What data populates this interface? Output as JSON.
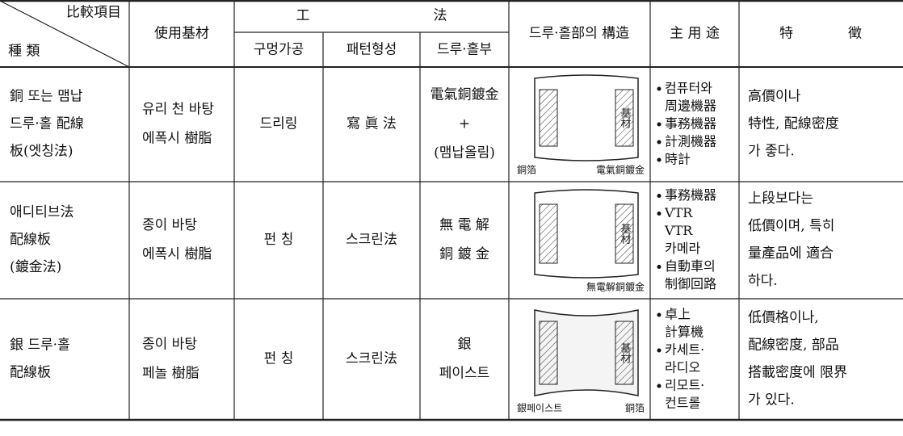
{
  "header": {
    "kind_label": "比較項目",
    "kind_sub": "種 類",
    "base": "使用基材",
    "method_1": "工",
    "method_2": "法",
    "hole": "구멍가공",
    "pattern": "패턴형성",
    "through": "드루·홀부",
    "structure": "드루·홀部의 構造",
    "uses": "主 用 途",
    "features": "特　　　　徵"
  },
  "rows": [
    {
      "kind": [
        "銅 또는 맴납",
        "드루·홀 配線",
        "板(엣칭法)"
      ],
      "base": [
        "유리 천 바탕",
        "에폭시 樹脂"
      ],
      "hole": [
        "드리링"
      ],
      "pattern": [
        "寫 眞 法"
      ],
      "through": [
        "電氣銅鍍金",
        "+",
        "(맴납올림)"
      ],
      "diagram": {
        "base": "基材",
        "left": "銅箔",
        "right": "電氣銅鍍金"
      },
      "uses": [
        [
          "컴퓨터와",
          "周邊機器"
        ],
        [
          "事務機器"
        ],
        [
          "計測機器"
        ],
        [
          "時計"
        ]
      ],
      "features": [
        "高價이나",
        "特性, 配線密度",
        "가 좋다."
      ]
    },
    {
      "kind": [
        "애디티브法",
        "配線板",
        "(鍍金法)"
      ],
      "base": [
        "종이 바탕",
        "에폭시 樹脂"
      ],
      "hole": [
        "펀  칭"
      ],
      "pattern": [
        "스크린法"
      ],
      "through": [
        "無 電 解",
        "銅 鍍 金"
      ],
      "diagram": {
        "base": "基材",
        "right": "無電解銅鍍金"
      },
      "uses": [
        [
          "事務機器"
        ],
        [
          "VTR",
          "VTR",
          "카메라"
        ],
        [
          "自動車의",
          "制御回路"
        ]
      ],
      "features": [
        "上段보다는",
        "低價이며, 특히",
        "量產品에 適合",
        "하다."
      ]
    },
    {
      "kind": [
        "銀 드루·홀",
        "配線板"
      ],
      "base": [
        "종이 바탕",
        "페놀 樹脂"
      ],
      "hole": [
        "펀  칭"
      ],
      "pattern": [
        "스크린法"
      ],
      "through": [
        "銀",
        "페이스트"
      ],
      "diagram": {
        "base": "基材",
        "left": "銀페이스트",
        "right": "銅箔"
      },
      "uses": [
        [
          "卓上",
          "計算機"
        ],
        [
          "카세트·",
          "라디오"
        ],
        [
          "리모트·",
          "컨트롤"
        ]
      ],
      "features": [
        "低價格이나,",
        "配線密度, 部品",
        "搭載密度에 限界",
        "가 있다."
      ]
    }
  ]
}
